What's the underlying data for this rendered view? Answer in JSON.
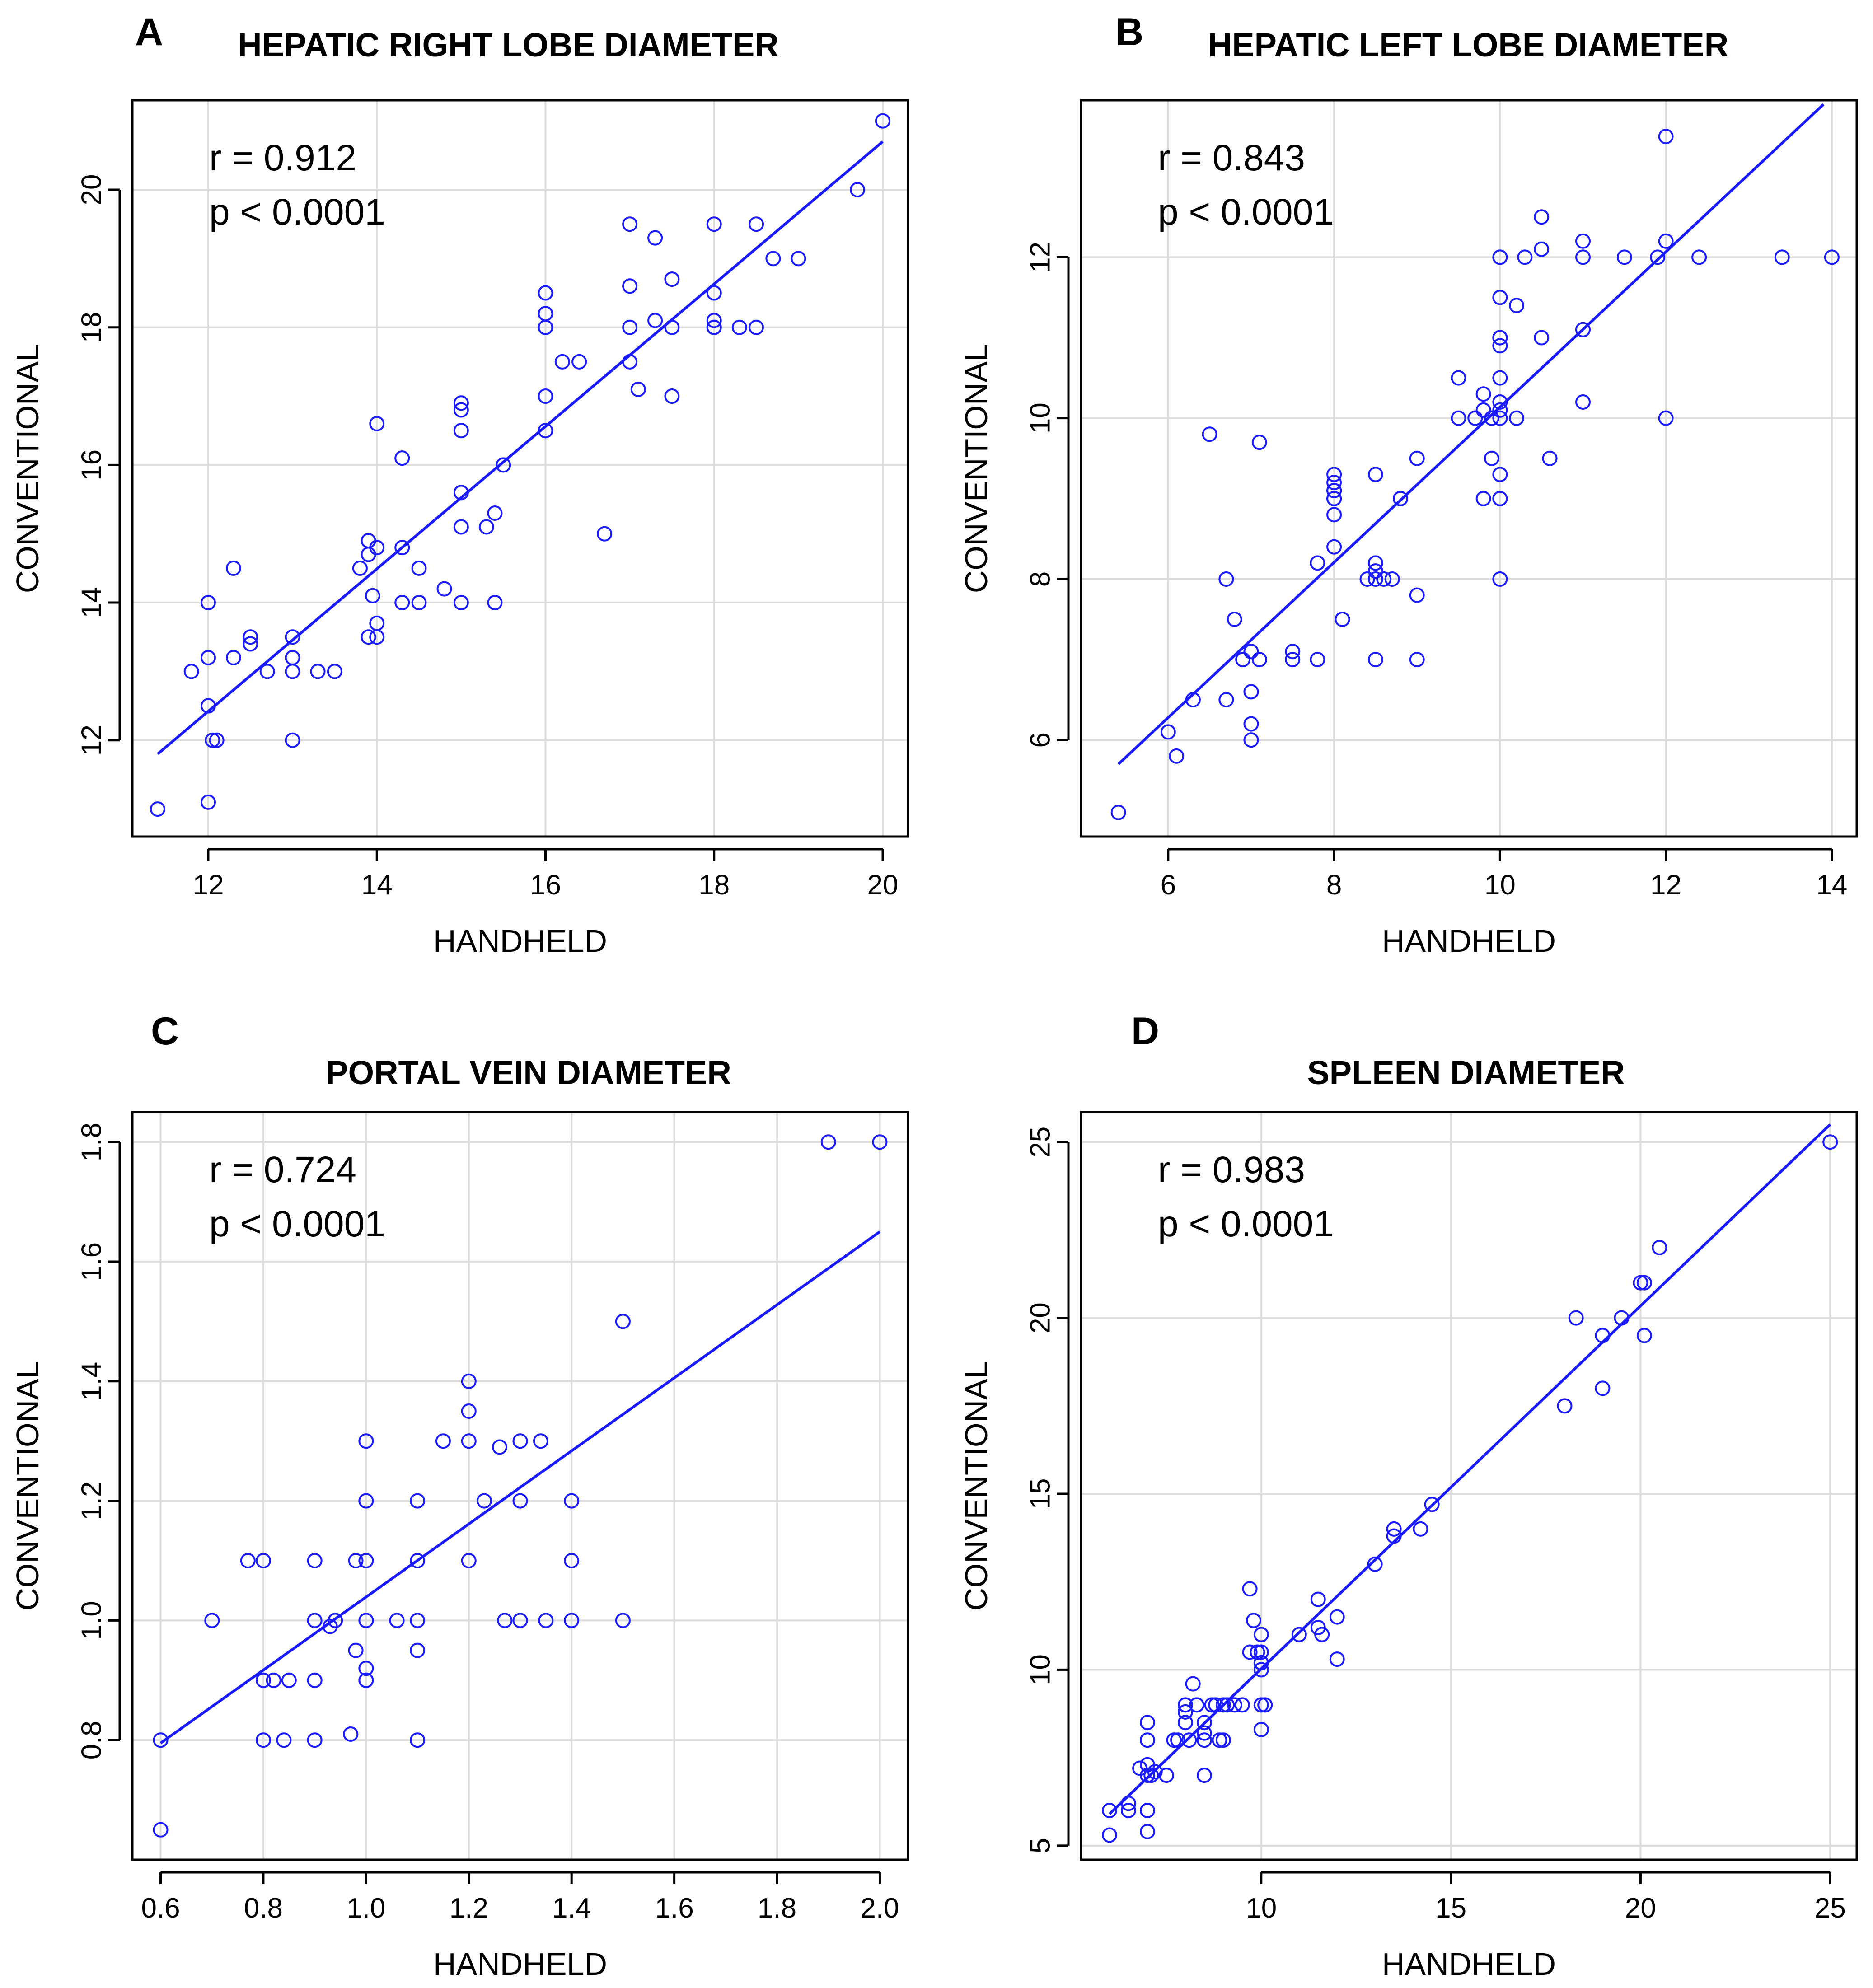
{
  "chart_data": [
    {
      "panel": "A",
      "type": "scatter",
      "title": "HEPATIC RIGHT LOBE DIAMETER",
      "xlabel": "HANDHELD",
      "ylabel": "CONVENTIONAL",
      "xlim": [
        11.1,
        20.3
      ],
      "ylim": [
        10.6,
        21.3
      ],
      "xticks": [
        12,
        14,
        16,
        18,
        20
      ],
      "yticks": [
        12,
        14,
        16,
        18,
        20
      ],
      "grid": true,
      "r_text": "r = 0.912",
      "p_text": "p < 0.0001",
      "fit_line": [
        [
          11.4,
          11.8
        ],
        [
          20.0,
          20.7
        ]
      ],
      "x": [
        11.4,
        12.0,
        12.0,
        11.8,
        12.0,
        12.05,
        12.1,
        12.0,
        12.3,
        12.3,
        12.5,
        12.5,
        12.7,
        13.0,
        13.0,
        13.0,
        13.0,
        13.3,
        13.5,
        13.8,
        13.9,
        13.9,
        13.95,
        13.9,
        14.0,
        14.0,
        14.0,
        14.0,
        14.3,
        14.3,
        14.3,
        14.5,
        14.5,
        14.8,
        15.0,
        15.0,
        15.0,
        15.0,
        15.0,
        15.0,
        15.3,
        15.4,
        15.4,
        15.5,
        16.0,
        16.0,
        16.0,
        16.0,
        16.0,
        16.0,
        16.2,
        16.4,
        16.7,
        17.0,
        17.0,
        17.0,
        17.0,
        17.1,
        17.3,
        17.3,
        17.5,
        17.5,
        17.5,
        18.0,
        18.0,
        18.0,
        18.0,
        18.0,
        18.3,
        18.5,
        18.5,
        18.7,
        19.0,
        19.7,
        20.0
      ],
      "y": [
        11.0,
        11.1,
        12.5,
        13.0,
        13.2,
        12.0,
        12.0,
        14.0,
        14.5,
        13.2,
        13.5,
        13.4,
        13.0,
        13.5,
        13.2,
        13.0,
        12.0,
        13.0,
        13.0,
        14.5,
        14.9,
        14.7,
        14.1,
        13.5,
        16.6,
        14.8,
        13.7,
        13.5,
        16.1,
        14.8,
        14.0,
        14.5,
        14.0,
        14.2,
        16.9,
        16.8,
        16.5,
        15.6,
        15.1,
        14.0,
        15.1,
        15.3,
        14.0,
        16.0,
        18.5,
        18.2,
        18.0,
        17.0,
        16.5,
        18.0,
        17.5,
        17.5,
        15.0,
        19.5,
        18.6,
        18.0,
        17.5,
        17.1,
        18.1,
        19.3,
        18.7,
        18.0,
        17.0,
        19.5,
        18.5,
        18.1,
        18.0,
        18.0,
        18.0,
        19.5,
        18.0,
        19.0,
        19.0,
        20.0,
        21.0
      ]
    },
    {
      "panel": "B",
      "type": "scatter",
      "title": "HEPATIC LEFT LOBE DIAMETER",
      "xlabel": "HANDHELD",
      "ylabel": "CONVENTIONAL",
      "xlim": [
        4.95,
        14.3
      ],
      "ylim": [
        4.8,
        13.95
      ],
      "xticks": [
        6,
        8,
        10,
        12,
        14
      ],
      "yticks": [
        6,
        8,
        10,
        12
      ],
      "grid": true,
      "r_text": "r = 0.843",
      "p_text": "p < 0.0001",
      "fit_line": [
        [
          5.4,
          5.7
        ],
        [
          13.9,
          13.9
        ]
      ],
      "x": [
        5.4,
        6.0,
        6.1,
        6.3,
        6.5,
        6.7,
        6.7,
        6.8,
        6.9,
        7.0,
        7.0,
        7.0,
        7.0,
        7.1,
        7.1,
        7.5,
        7.5,
        7.8,
        7.8,
        8.0,
        8.0,
        8.0,
        8.0,
        8.0,
        8.0,
        8.0,
        8.0,
        8.1,
        8.4,
        8.5,
        8.5,
        8.5,
        8.5,
        8.5,
        8.6,
        8.7,
        8.8,
        8.8,
        9.0,
        9.0,
        9.0,
        9.5,
        9.5,
        9.7,
        9.8,
        9.8,
        9.8,
        9.9,
        9.9,
        10.0,
        10.0,
        10.0,
        10.0,
        10.0,
        10.0,
        10.0,
        10.0,
        10.0,
        10.0,
        10.0,
        10.0,
        10.0,
        10.0,
        10.2,
        10.2,
        10.3,
        10.5,
        10.5,
        10.5,
        10.6,
        11.0,
        11.0,
        11.0,
        11.0,
        11.5,
        11.9,
        12.0,
        12.0,
        12.0,
        12.4,
        13.4,
        14.0
      ],
      "y": [
        5.1,
        6.1,
        5.8,
        6.5,
        9.8,
        8.0,
        6.5,
        7.5,
        7.0,
        7.1,
        6.6,
        6.2,
        6.0,
        9.7,
        7.0,
        7.1,
        7.0,
        8.2,
        7.0,
        9.3,
        9.2,
        9.1,
        9.0,
        8.8,
        8.4,
        9.0,
        9.1,
        7.5,
        8.0,
        9.3,
        8.2,
        8.1,
        8.0,
        7.0,
        8.0,
        8.0,
        9.0,
        9.0,
        9.5,
        7.8,
        7.0,
        10.5,
        10.0,
        10.0,
        10.3,
        10.1,
        9.0,
        9.5,
        10.0,
        12.0,
        12.0,
        11.5,
        11.0,
        11.0,
        10.9,
        10.5,
        10.1,
        10.0,
        9.3,
        9.0,
        9.0,
        8.0,
        10.2,
        11.4,
        10.0,
        12.0,
        12.5,
        12.1,
        11.0,
        9.5,
        12.2,
        12.0,
        11.1,
        10.2,
        12.0,
        12.0,
        13.5,
        12.2,
        10.0,
        12.0,
        12.0,
        12.0
      ]
    },
    {
      "panel": "C",
      "type": "scatter",
      "title": "PORTAL VEIN DIAMETER",
      "xlabel": "HANDHELD",
      "ylabel": "CONVENTIONAL",
      "xlim": [
        0.545,
        2.055
      ],
      "ylim": [
        0.6,
        1.85
      ],
      "xticks": [
        0.6,
        0.8,
        1.0,
        1.2,
        1.4,
        1.6,
        1.8,
        2.0
      ],
      "yticks": [
        0.8,
        1.0,
        1.2,
        1.4,
        1.6,
        1.8
      ],
      "xtick_labels": [
        "0.6",
        "0.8",
        "1.0",
        "1.2",
        "1.4",
        "1.6",
        "1.8",
        "2.0"
      ],
      "ytick_labels": [
        "0.8",
        "1.0",
        "1.2",
        "1.4",
        "1.6",
        "1.8"
      ],
      "grid": true,
      "r_text": "r = 0.724",
      "p_text": "p < 0.0001",
      "fit_line": [
        [
          0.6,
          0.795
        ],
        [
          2.0,
          1.65
        ]
      ],
      "x": [
        0.6,
        0.6,
        0.7,
        0.77,
        0.8,
        0.8,
        0.8,
        0.82,
        0.84,
        0.85,
        0.9,
        0.9,
        0.9,
        0.9,
        0.93,
        0.94,
        0.97,
        0.98,
        0.98,
        1.0,
        1.0,
        1.0,
        1.0,
        1.0,
        1.0,
        1.0,
        1.06,
        1.1,
        1.1,
        1.1,
        1.1,
        1.1,
        1.15,
        1.2,
        1.2,
        1.2,
        1.2,
        1.23,
        1.26,
        1.27,
        1.3,
        1.3,
        1.3,
        1.34,
        1.35,
        1.4,
        1.4,
        1.4,
        1.5,
        1.5,
        1.9,
        2.0
      ],
      "y": [
        0.8,
        0.65,
        1.0,
        1.1,
        1.1,
        0.9,
        0.8,
        0.9,
        0.8,
        0.9,
        1.1,
        1.0,
        0.9,
        0.8,
        0.99,
        1.0,
        0.81,
        1.1,
        0.95,
        1.3,
        1.2,
        1.1,
        1.0,
        0.92,
        0.9,
        0.9,
        1.0,
        1.2,
        1.1,
        1.0,
        0.95,
        0.8,
        1.3,
        1.4,
        1.35,
        1.3,
        1.1,
        1.2,
        1.29,
        1.0,
        1.3,
        1.2,
        1.0,
        1.3,
        1.0,
        1.2,
        1.1,
        1.0,
        1.5,
        1.0,
        1.8,
        1.8
      ]
    },
    {
      "panel": "D",
      "type": "scatter",
      "title": "SPLEEN DIAMETER",
      "xlabel": "HANDHELD",
      "ylabel": "CONVENTIONAL",
      "xlim": [
        5.25,
        25.7
      ],
      "ylim": [
        4.6,
        25.85
      ],
      "xticks": [
        10,
        15,
        20,
        25
      ],
      "yticks": [
        5,
        10,
        15,
        20,
        25
      ],
      "grid": true,
      "r_text": "r = 0.983",
      "p_text": "p < 0.0001",
      "fit_line": [
        [
          6.0,
          5.9
        ],
        [
          25.0,
          25.5
        ]
      ],
      "x": [
        6.0,
        6.0,
        6.5,
        6.5,
        6.8,
        7.0,
        7.0,
        7.0,
        7.0,
        7.0,
        7.0,
        7.1,
        7.2,
        7.5,
        7.7,
        7.8,
        8.0,
        8.0,
        8.0,
        8.1,
        8.2,
        8.3,
        8.5,
        8.5,
        8.5,
        8.5,
        8.7,
        8.8,
        8.9,
        9.0,
        9.0,
        9.1,
        9.3,
        9.5,
        9.7,
        9.7,
        9.8,
        9.9,
        10.0,
        10.0,
        10.0,
        10.0,
        10.0,
        10.0,
        10.1,
        11.0,
        11.5,
        11.5,
        11.6,
        12.0,
        12.0,
        13.0,
        13.5,
        13.5,
        14.2,
        14.5,
        18.0,
        18.3,
        19.0,
        19.0,
        19.5,
        20.0,
        20.1,
        20.1,
        20.5,
        25.0
      ],
      "y": [
        6.0,
        5.3,
        6.2,
        6.0,
        7.2,
        8.5,
        8.0,
        7.3,
        7.0,
        6.0,
        5.4,
        7.0,
        7.1,
        7.0,
        8.0,
        8.0,
        9.0,
        8.8,
        8.5,
        8.0,
        9.6,
        9.0,
        8.5,
        8.2,
        8.0,
        7.0,
        9.0,
        9.0,
        8.0,
        9.0,
        8.0,
        9.0,
        9.0,
        9.0,
        12.3,
        10.5,
        11.4,
        10.5,
        11.0,
        10.5,
        10.2,
        10.0,
        9.0,
        8.3,
        9.0,
        11.0,
        12.0,
        11.2,
        11.0,
        11.5,
        10.3,
        13.0,
        14.0,
        13.8,
        14.0,
        14.7,
        17.5,
        20.0,
        19.5,
        18.0,
        20.0,
        21.0,
        21.0,
        19.5,
        22.0,
        25.0
      ]
    }
  ]
}
